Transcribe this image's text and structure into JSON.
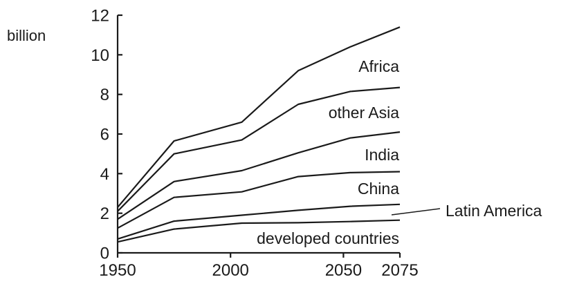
{
  "chart_data": {
    "type": "area",
    "stacked": true,
    "title": "",
    "xlabel": "",
    "ylabel": "billion",
    "x": [
      1950,
      1975,
      2005,
      2030,
      2053,
      2075
    ],
    "x_ticks": [
      1950,
      2000,
      2050,
      2075
    ],
    "y_ticks": [
      0,
      2,
      4,
      6,
      8,
      10,
      12
    ],
    "xlim": [
      1950,
      2075
    ],
    "ylim": [
      0,
      12
    ],
    "grid": false,
    "legend": "none",
    "line_color": "#1a1a1a",
    "series": [
      {
        "name": "developed countries",
        "cumulative": [
          0.55,
          1.2,
          1.5,
          1.52,
          1.58,
          1.65
        ]
      },
      {
        "name": "Latin America",
        "cumulative": [
          0.7,
          1.6,
          1.9,
          2.15,
          2.35,
          2.45
        ]
      },
      {
        "name": "China",
        "cumulative": [
          1.25,
          2.8,
          3.08,
          3.85,
          4.05,
          4.1
        ]
      },
      {
        "name": "India",
        "cumulative": [
          1.7,
          3.6,
          4.15,
          5.05,
          5.8,
          6.1
        ]
      },
      {
        "name": "other Asia",
        "cumulative": [
          2.1,
          5.0,
          5.7,
          7.5,
          8.15,
          8.35
        ]
      },
      {
        "name": "Africa",
        "cumulative": [
          2.3,
          5.65,
          6.6,
          9.2,
          10.4,
          11.4
        ]
      }
    ]
  }
}
